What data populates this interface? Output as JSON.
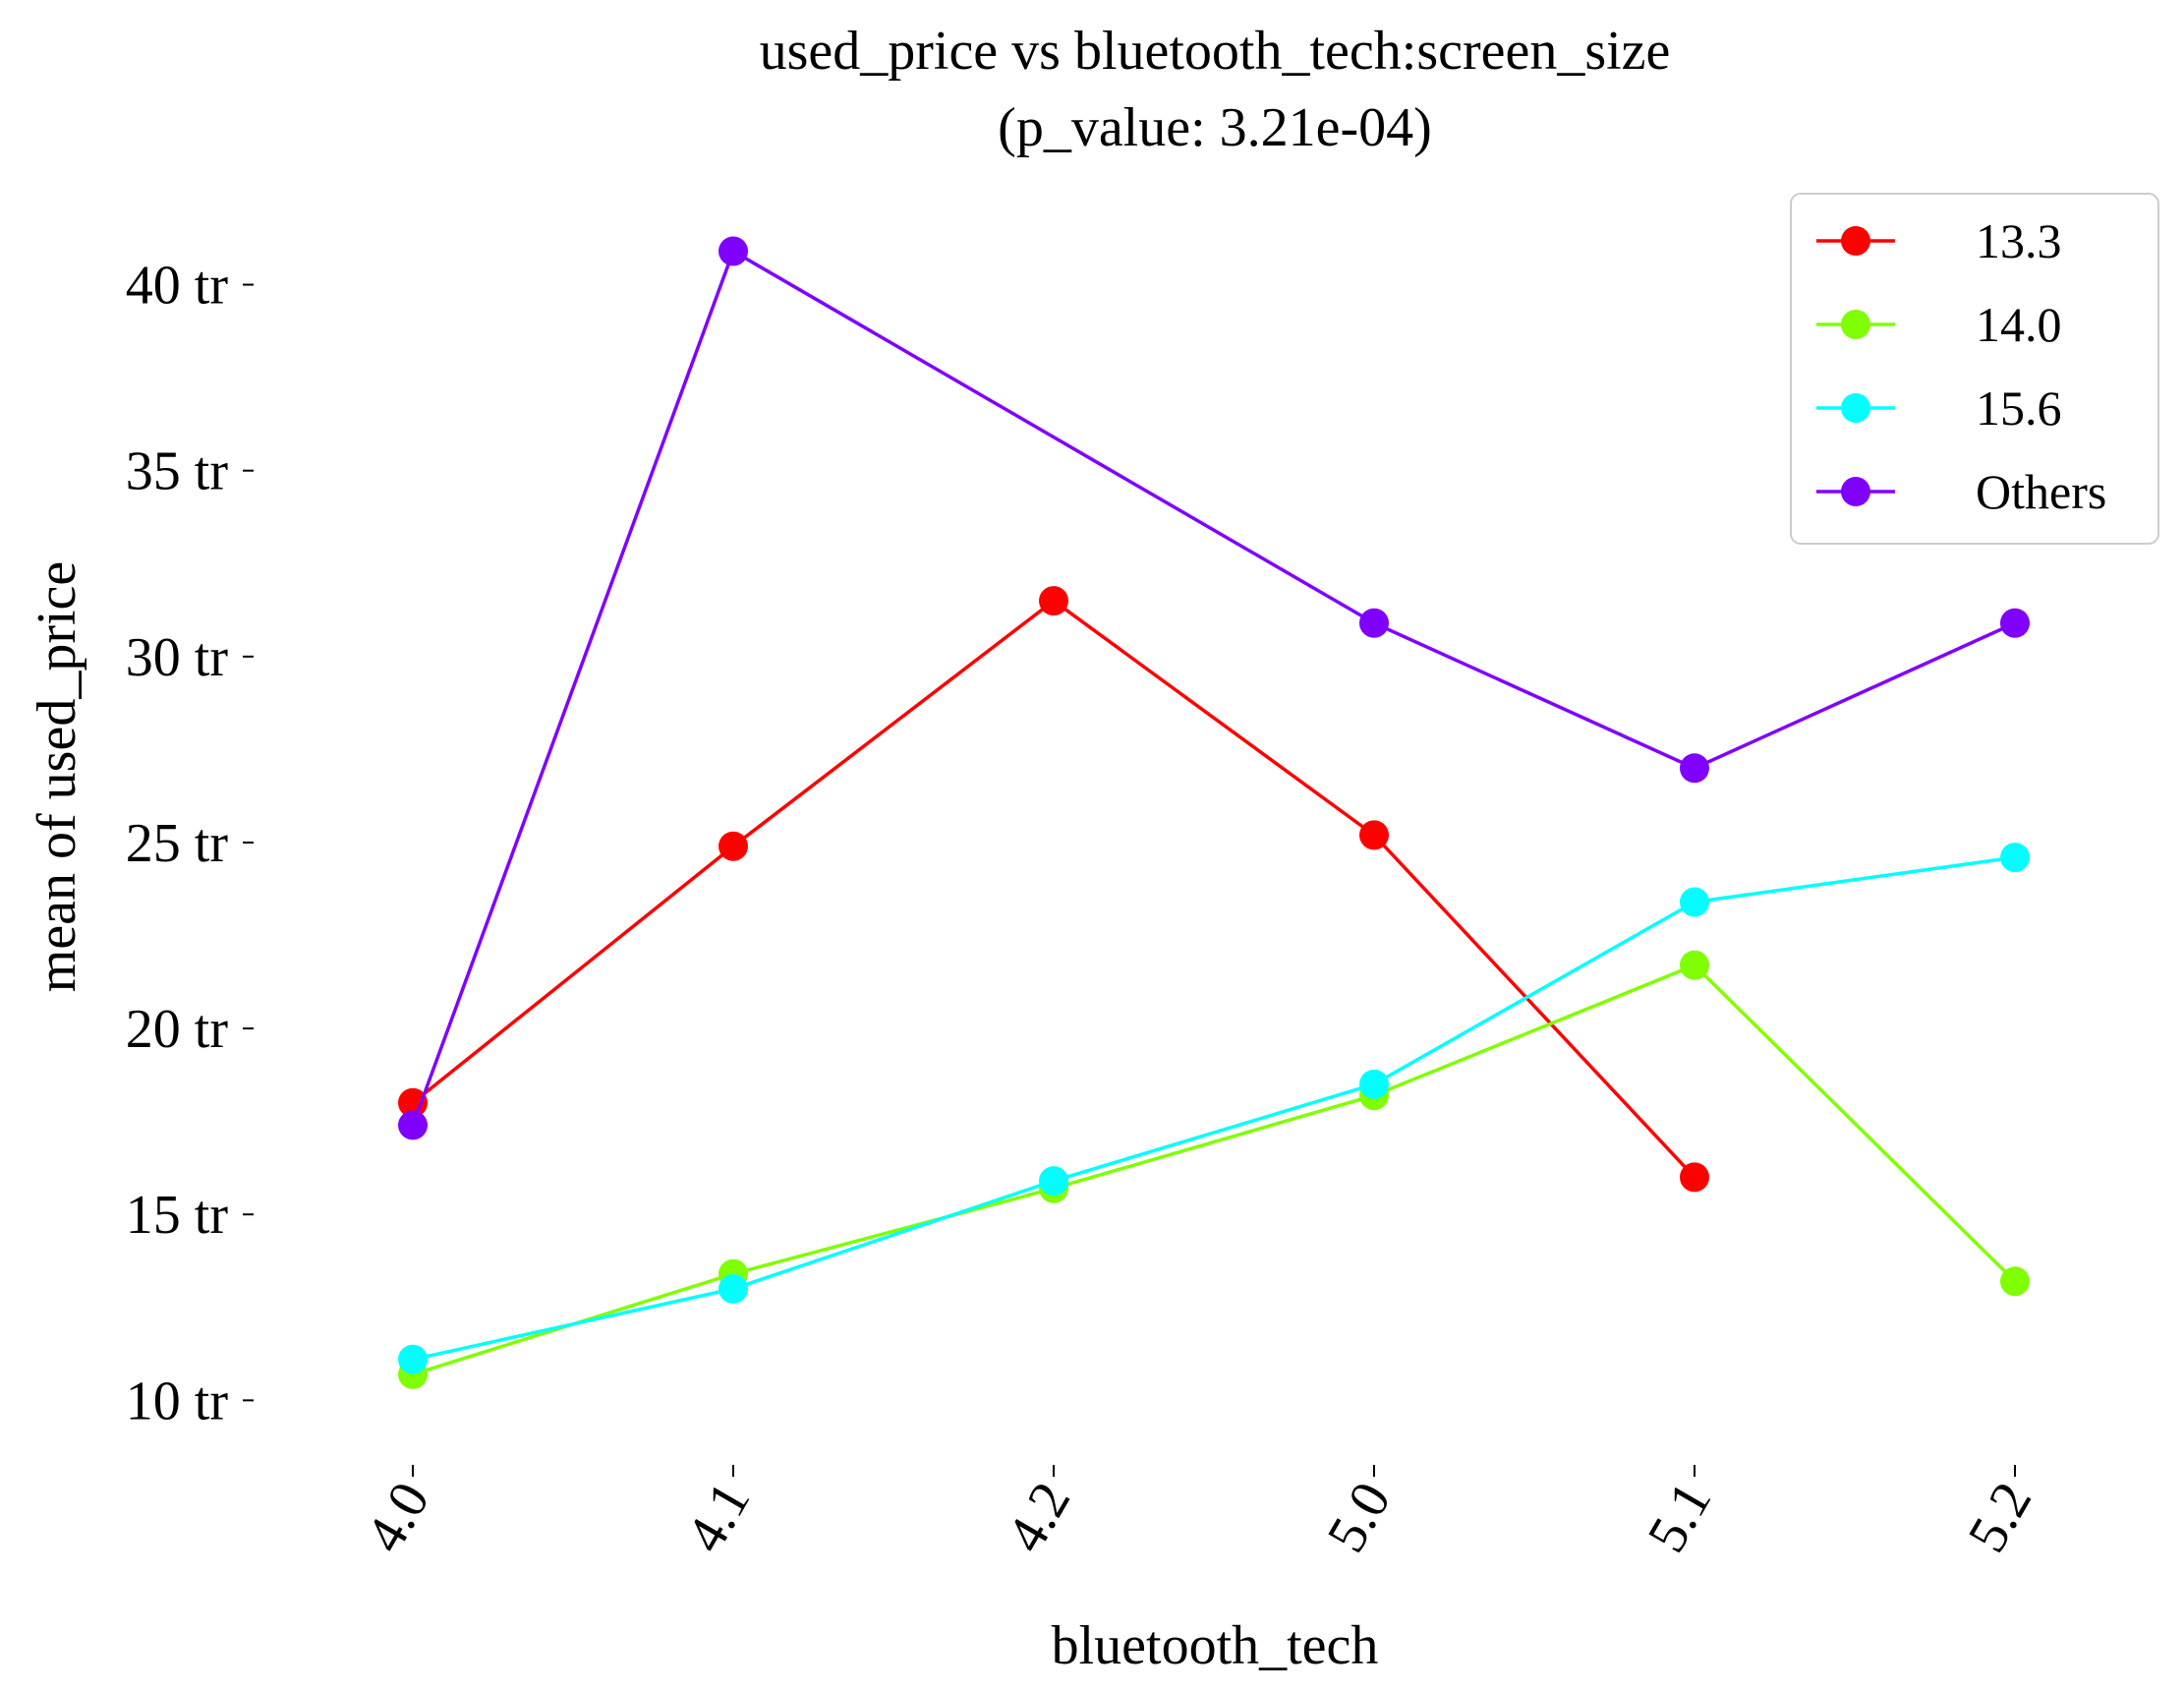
{
  "chart_data": {
    "type": "line",
    "title": "used_price vs bluetooth_tech:screen_size",
    "subtitle": "(p_value: 3.21e-04)",
    "xlabel": "bluetooth_tech",
    "ylabel": "mean of used_price",
    "categories": [
      "4.0",
      "4.1",
      "4.2",
      "5.0",
      "5.1",
      "5.2"
    ],
    "y_ticks": [
      {
        "value": 10,
        "label": "10 tr"
      },
      {
        "value": 15,
        "label": "15 tr"
      },
      {
        "value": 20,
        "label": "20 tr"
      },
      {
        "value": 25,
        "label": "25 tr"
      },
      {
        "value": 30,
        "label": "30 tr"
      },
      {
        "value": 35,
        "label": "35 tr"
      },
      {
        "value": 40,
        "label": "40 tr"
      }
    ],
    "y_unit": "tr",
    "ylim": [
      8,
      42.5
    ],
    "grid": false,
    "legend_position": "top-right",
    "x_tick_rotation": "-60deg",
    "series": [
      {
        "name": "13.3",
        "color": "#ff0000",
        "values": [
          18.0,
          24.9,
          31.5,
          25.2,
          16.0,
          null
        ]
      },
      {
        "name": "14.0",
        "color": "#80ff00",
        "values": [
          10.7,
          13.4,
          15.7,
          18.2,
          21.7,
          13.2
        ]
      },
      {
        "name": "15.6",
        "color": "#00ffff",
        "values": [
          11.1,
          13.0,
          15.9,
          18.5,
          23.4,
          24.6
        ]
      },
      {
        "name": "Others",
        "color": "#8000ff",
        "values": [
          17.4,
          40.9,
          null,
          30.9,
          27.0,
          30.9
        ]
      }
    ]
  }
}
